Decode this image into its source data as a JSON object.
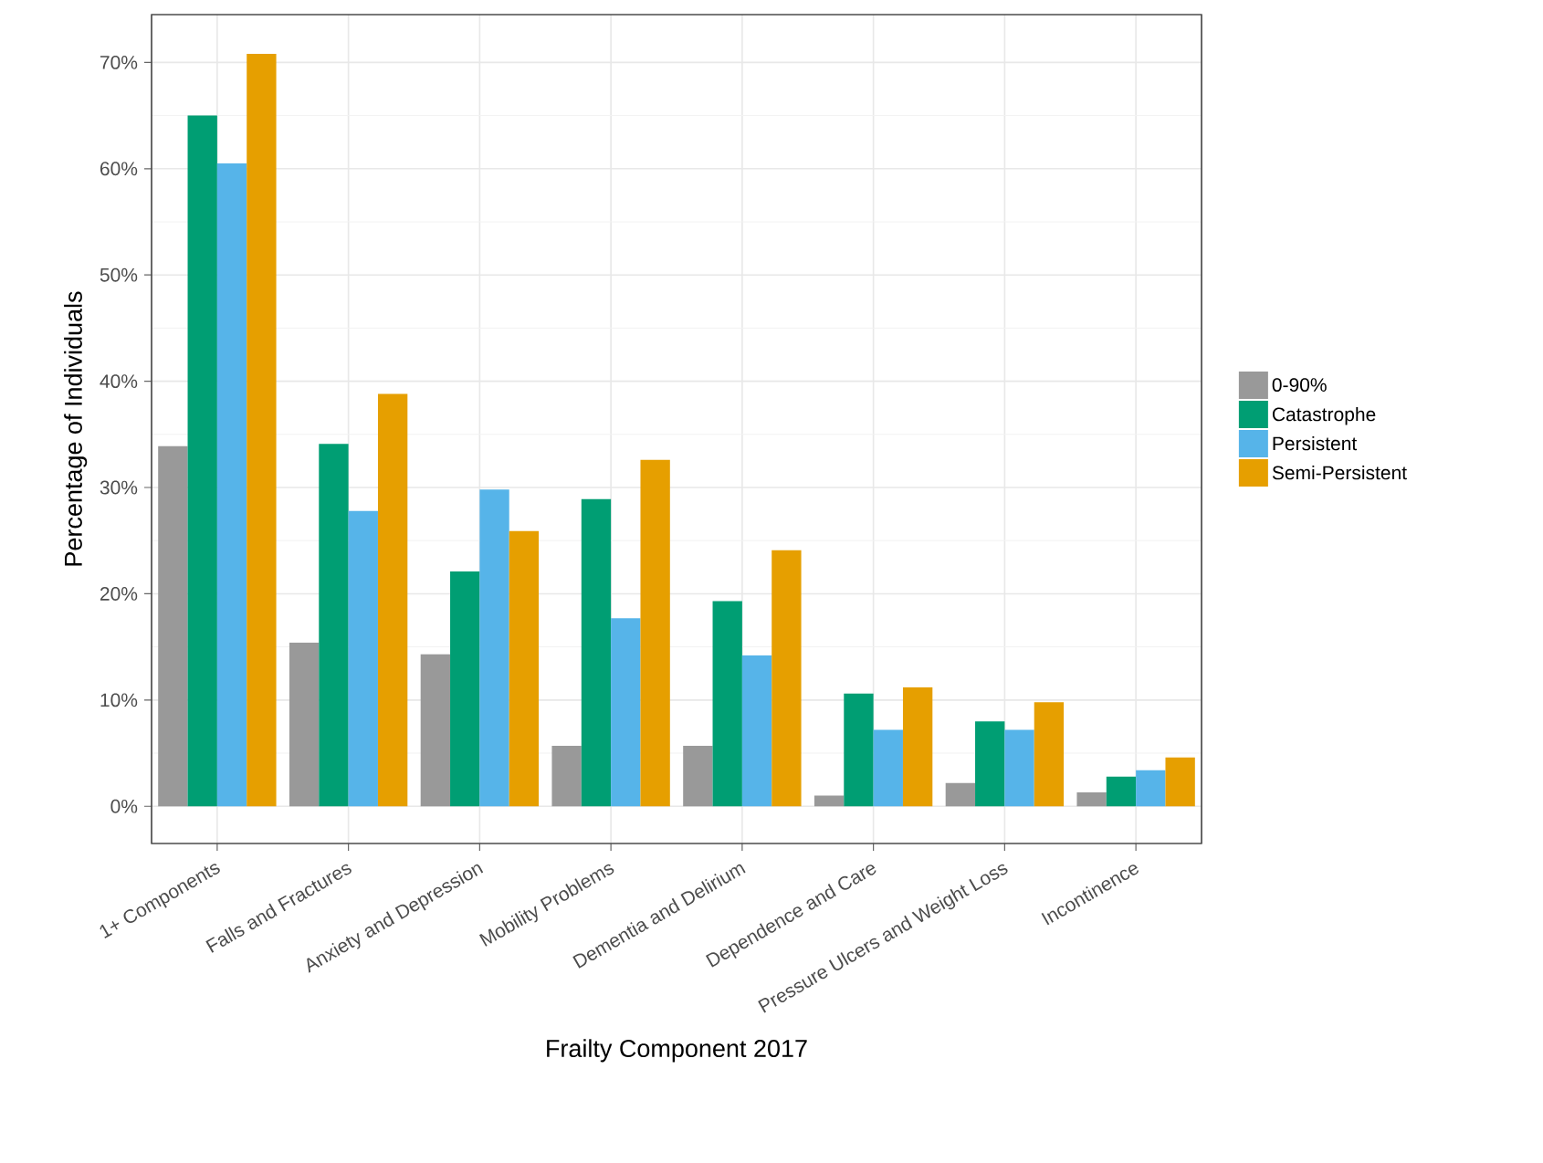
{
  "chart_data": {
    "type": "bar",
    "xlabel": "Frailty Component 2017",
    "ylabel": "Percentage of Individuals",
    "categories": [
      "1+ Components",
      "Falls and Fractures",
      "Anxiety and Depression",
      "Mobility Problems",
      "Dementia and Delirium",
      "Dependence and Care",
      "Pressure Ulcers and Weight Loss",
      "Incontinence"
    ],
    "series": [
      {
        "name": "0-90%",
        "color": "#999999",
        "values": [
          33.9,
          15.4,
          14.3,
          5.7,
          5.7,
          1.0,
          2.2,
          1.3
        ]
      },
      {
        "name": "Catastrophe",
        "color": "#009e73",
        "values": [
          65.0,
          34.1,
          22.1,
          28.9,
          19.3,
          10.6,
          8.0,
          2.8
        ]
      },
      {
        "name": "Persistent",
        "color": "#56b4e9",
        "values": [
          60.5,
          27.8,
          29.8,
          17.7,
          14.2,
          7.2,
          7.2,
          3.4
        ]
      },
      {
        "name": "Semi-Persistent",
        "color": "#e69f00",
        "values": [
          70.8,
          38.8,
          25.9,
          32.6,
          24.1,
          11.2,
          9.8,
          4.6
        ]
      }
    ],
    "ylim": [
      -3.5,
      74.5
    ],
    "yticks": [
      {
        "value": 0,
        "label": "0%"
      },
      {
        "value": 10,
        "label": "10%"
      },
      {
        "value": 20,
        "label": "20%"
      },
      {
        "value": 30,
        "label": "30%"
      },
      {
        "value": 40,
        "label": "40%"
      },
      {
        "value": 50,
        "label": "50%"
      },
      {
        "value": 60,
        "label": "60%"
      },
      {
        "value": 70,
        "label": "70%"
      }
    ],
    "grid": true,
    "legend": "right"
  }
}
